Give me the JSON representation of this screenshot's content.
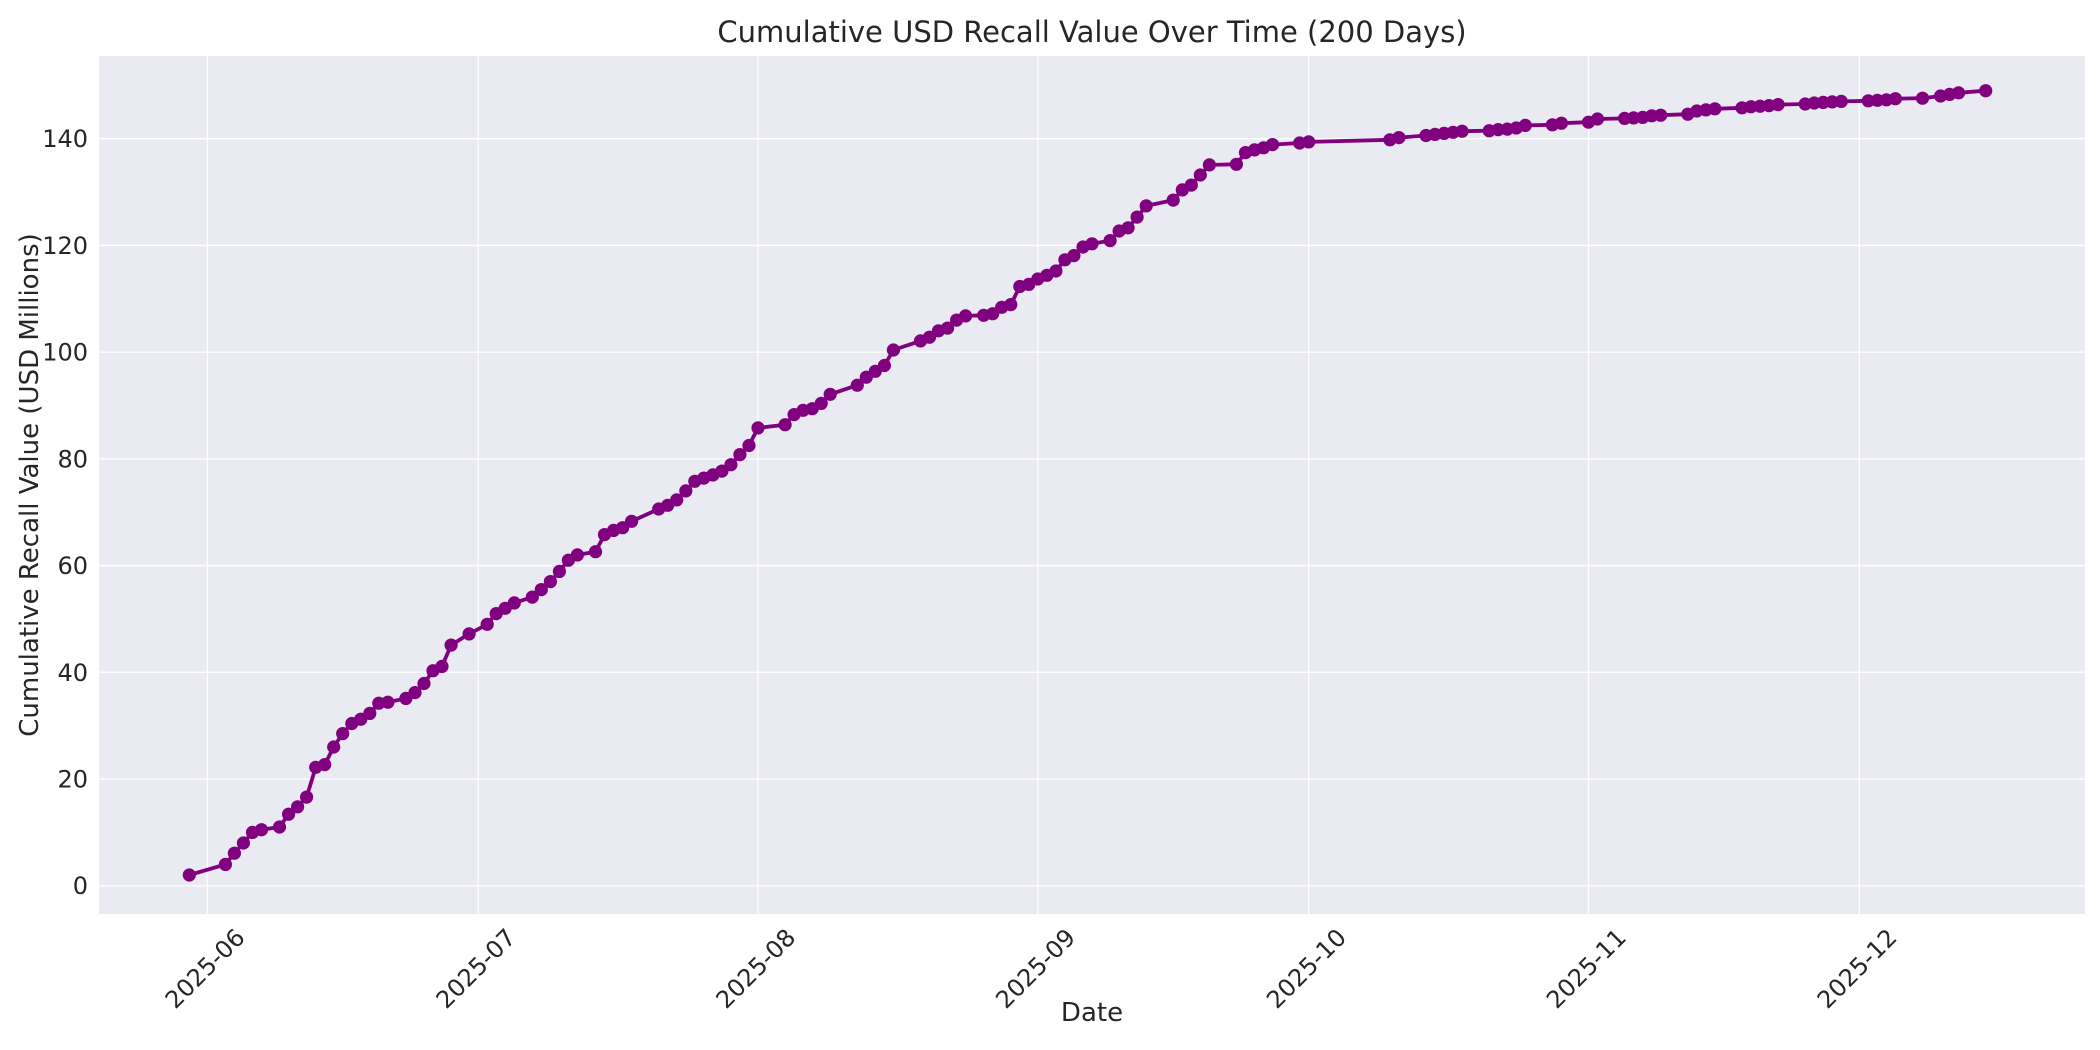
{
  "chart_data": {
    "type": "line",
    "title": "Cumulative USD Recall Value Over Time (200 Days)",
    "xlabel": "Date",
    "ylabel": "Cumulative Recall Value (USD Millions)",
    "x_ticks": [
      "2025-06",
      "2025-07",
      "2025-08",
      "2025-09",
      "2025-10",
      "2025-11",
      "2025-12"
    ],
    "y_ticks": [
      0,
      20,
      40,
      60,
      80,
      100,
      120,
      140
    ],
    "xlim": [
      "2025-05-20",
      "2025-12-26"
    ],
    "ylim": [
      -5.3,
      155.5
    ],
    "grid": true,
    "legend": "none",
    "style": {
      "figure_background": "#FFFFFF",
      "plot_background": "#EAEAF2",
      "grid_color": "#FFFFFF",
      "text_color": "#262626",
      "line_color": "#800080"
    },
    "series": [
      {
        "name": "Cumulative Recall Value",
        "color": "#800080",
        "points": [
          [
            "2025-05-30",
            2.0
          ],
          [
            "2025-06-03",
            4.0
          ],
          [
            "2025-06-04",
            6.1
          ],
          [
            "2025-06-05",
            8.0
          ],
          [
            "2025-06-06",
            10.0
          ],
          [
            "2025-06-07",
            10.5
          ],
          [
            "2025-06-09",
            11.0
          ],
          [
            "2025-06-10",
            13.4
          ],
          [
            "2025-06-11",
            14.8
          ],
          [
            "2025-06-12",
            16.6
          ],
          [
            "2025-06-13",
            22.2
          ],
          [
            "2025-06-14",
            22.7
          ],
          [
            "2025-06-15",
            26.0
          ],
          [
            "2025-06-16",
            28.5
          ],
          [
            "2025-06-17",
            30.4
          ],
          [
            "2025-06-18",
            31.2
          ],
          [
            "2025-06-19",
            32.3
          ],
          [
            "2025-06-20",
            34.2
          ],
          [
            "2025-06-21",
            34.4
          ],
          [
            "2025-06-23",
            35.1
          ],
          [
            "2025-06-24",
            36.2
          ],
          [
            "2025-06-25",
            37.9
          ],
          [
            "2025-06-26",
            40.3
          ],
          [
            "2025-06-27",
            41.1
          ],
          [
            "2025-06-28",
            45.1
          ],
          [
            "2025-06-30",
            47.2
          ],
          [
            "2025-07-02",
            49.0
          ],
          [
            "2025-07-03",
            51.0
          ],
          [
            "2025-07-04",
            52.0
          ],
          [
            "2025-07-05",
            53.0
          ],
          [
            "2025-07-07",
            54.1
          ],
          [
            "2025-07-08",
            55.5
          ],
          [
            "2025-07-09",
            57.0
          ],
          [
            "2025-07-10",
            58.9
          ],
          [
            "2025-07-11",
            61.0
          ],
          [
            "2025-07-12",
            62.0
          ],
          [
            "2025-07-14",
            62.6
          ],
          [
            "2025-07-15",
            65.8
          ],
          [
            "2025-07-16",
            66.6
          ],
          [
            "2025-07-17",
            67.1
          ],
          [
            "2025-07-18",
            68.3
          ],
          [
            "2025-07-21",
            70.6
          ],
          [
            "2025-07-22",
            71.3
          ],
          [
            "2025-07-23",
            72.3
          ],
          [
            "2025-07-24",
            74.0
          ],
          [
            "2025-07-25",
            75.8
          ],
          [
            "2025-07-26",
            76.4
          ],
          [
            "2025-07-27",
            77.0
          ],
          [
            "2025-07-28",
            77.7
          ],
          [
            "2025-07-29",
            78.9
          ],
          [
            "2025-07-30",
            80.8
          ],
          [
            "2025-07-31",
            82.5
          ],
          [
            "2025-08-01",
            85.8
          ],
          [
            "2025-08-04",
            86.4
          ],
          [
            "2025-08-05",
            88.3
          ],
          [
            "2025-08-06",
            89.1
          ],
          [
            "2025-08-07",
            89.4
          ],
          [
            "2025-08-08",
            90.4
          ],
          [
            "2025-08-09",
            92.1
          ],
          [
            "2025-08-12",
            93.8
          ],
          [
            "2025-08-13",
            95.3
          ],
          [
            "2025-08-14",
            96.4
          ],
          [
            "2025-08-15",
            97.5
          ],
          [
            "2025-08-16",
            100.4
          ],
          [
            "2025-08-19",
            102.1
          ],
          [
            "2025-08-20",
            102.8
          ],
          [
            "2025-08-21",
            104.0
          ],
          [
            "2025-08-22",
            104.5
          ],
          [
            "2025-08-23",
            106.0
          ],
          [
            "2025-08-24",
            106.8
          ],
          [
            "2025-08-26",
            106.9
          ],
          [
            "2025-08-27",
            107.2
          ],
          [
            "2025-08-28",
            108.4
          ],
          [
            "2025-08-29",
            108.9
          ],
          [
            "2025-08-30",
            112.3
          ],
          [
            "2025-08-31",
            112.7
          ],
          [
            "2025-09-01",
            113.7
          ],
          [
            "2025-09-02",
            114.4
          ],
          [
            "2025-09-03",
            115.2
          ],
          [
            "2025-09-04",
            117.3
          ],
          [
            "2025-09-05",
            118.1
          ],
          [
            "2025-09-06",
            119.7
          ],
          [
            "2025-09-07",
            120.3
          ],
          [
            "2025-09-09",
            120.9
          ],
          [
            "2025-09-10",
            122.7
          ],
          [
            "2025-09-11",
            123.3
          ],
          [
            "2025-09-12",
            125.3
          ],
          [
            "2025-09-13",
            127.4
          ],
          [
            "2025-09-16",
            128.5
          ],
          [
            "2025-09-17",
            130.4
          ],
          [
            "2025-09-18",
            131.3
          ],
          [
            "2025-09-19",
            133.2
          ],
          [
            "2025-09-20",
            135.1
          ],
          [
            "2025-09-23",
            135.2
          ],
          [
            "2025-09-24",
            137.4
          ],
          [
            "2025-09-25",
            137.9
          ],
          [
            "2025-09-26",
            138.3
          ],
          [
            "2025-09-27",
            138.9
          ],
          [
            "2025-09-30",
            139.2
          ],
          [
            "2025-10-01",
            139.4
          ],
          [
            "2025-10-10",
            139.8
          ],
          [
            "2025-10-11",
            140.2
          ],
          [
            "2025-10-14",
            140.6
          ],
          [
            "2025-10-15",
            140.8
          ],
          [
            "2025-10-16",
            141.0
          ],
          [
            "2025-10-17",
            141.2
          ],
          [
            "2025-10-18",
            141.4
          ],
          [
            "2025-10-21",
            141.5
          ],
          [
            "2025-10-22",
            141.7
          ],
          [
            "2025-10-23",
            141.8
          ],
          [
            "2025-10-24",
            142.0
          ],
          [
            "2025-10-25",
            142.5
          ],
          [
            "2025-10-28",
            142.6
          ],
          [
            "2025-10-29",
            142.9
          ],
          [
            "2025-11-01",
            143.1
          ],
          [
            "2025-11-02",
            143.7
          ],
          [
            "2025-11-05",
            143.8
          ],
          [
            "2025-11-06",
            143.9
          ],
          [
            "2025-11-07",
            144.0
          ],
          [
            "2025-11-08",
            144.3
          ],
          [
            "2025-11-09",
            144.4
          ],
          [
            "2025-11-12",
            144.6
          ],
          [
            "2025-11-13",
            145.2
          ],
          [
            "2025-11-14",
            145.4
          ],
          [
            "2025-11-15",
            145.6
          ],
          [
            "2025-11-18",
            145.8
          ],
          [
            "2025-11-19",
            146.0
          ],
          [
            "2025-11-20",
            146.1
          ],
          [
            "2025-11-21",
            146.2
          ],
          [
            "2025-11-22",
            146.4
          ],
          [
            "2025-11-25",
            146.5
          ],
          [
            "2025-11-26",
            146.7
          ],
          [
            "2025-11-27",
            146.8
          ],
          [
            "2025-11-28",
            146.9
          ],
          [
            "2025-11-29",
            147.0
          ],
          [
            "2025-12-02",
            147.1
          ],
          [
            "2025-12-03",
            147.2
          ],
          [
            "2025-12-04",
            147.3
          ],
          [
            "2025-12-05",
            147.5
          ],
          [
            "2025-12-08",
            147.6
          ],
          [
            "2025-12-10",
            148.0
          ],
          [
            "2025-12-11",
            148.3
          ],
          [
            "2025-12-12",
            148.6
          ],
          [
            "2025-12-15",
            149.0
          ]
        ]
      }
    ]
  }
}
